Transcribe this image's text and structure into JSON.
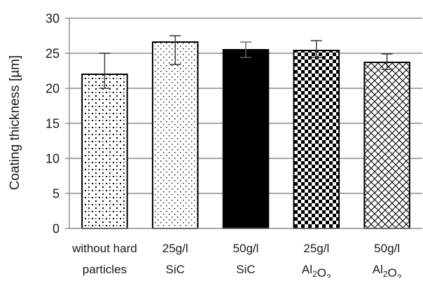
{
  "chart_data": {
    "type": "bar",
    "categories": [
      [
        "without hard",
        "particles"
      ],
      [
        "25g/l",
        "SiC"
      ],
      [
        "50g/l",
        "SiC"
      ],
      [
        "25g/l",
        "Al2O3"
      ],
      [
        "50g/l",
        "Al2O3"
      ]
    ],
    "values": [
      22.0,
      26.6,
      25.5,
      25.4,
      23.7
    ],
    "error_low": [
      20.0,
      23.4,
      24.4,
      24.4,
      22.7
    ],
    "error_high": [
      25.0,
      27.5,
      26.6,
      26.8,
      24.9
    ],
    "patterns": [
      "sparse-dots",
      "fine-dots",
      "solid",
      "checker",
      "crosshatch"
    ],
    "bar_color": "#000000",
    "title": "",
    "xlabel": "",
    "ylabel": "Coating thickness [µm]",
    "ylim": [
      0,
      30
    ],
    "yticks": [
      0,
      5,
      10,
      15,
      20,
      25,
      30
    ],
    "grid": "horizontal",
    "legend": "none"
  }
}
